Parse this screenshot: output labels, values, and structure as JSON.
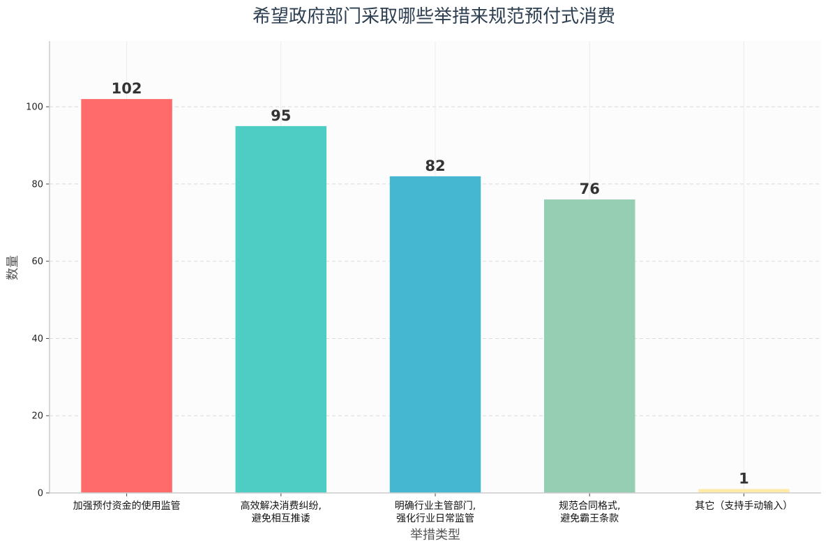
{
  "chart_data": {
    "type": "bar",
    "title": "希望政府部门采取哪些举措来规范预付式消费",
    "xlabel": "举措类型",
    "ylabel": "数量",
    "categories": [
      [
        "加强预付资金的使用监管"
      ],
      [
        "高效解决消费纠纷,",
        "避免相互推诿"
      ],
      [
        "明确行业主管部门,",
        "强化行业日常监管"
      ],
      [
        "规范合同格式,",
        "避免霸王条款"
      ],
      [
        "其它（支持手动输入）"
      ]
    ],
    "values": [
      102,
      95,
      82,
      76,
      1
    ],
    "colors": [
      "#FF6B6B",
      "#4ECDC4",
      "#45B7D1",
      "#96CEB4",
      "#FFEAA7"
    ],
    "ylim": [
      0,
      117
    ],
    "yticks": [
      0,
      20,
      40,
      60,
      80,
      100
    ],
    "grid": true,
    "legend": "none"
  },
  "style": {
    "plot_background": "#fcfcfc",
    "grid_color": "#d9d9d9",
    "spine_color": "#cccccc"
  }
}
